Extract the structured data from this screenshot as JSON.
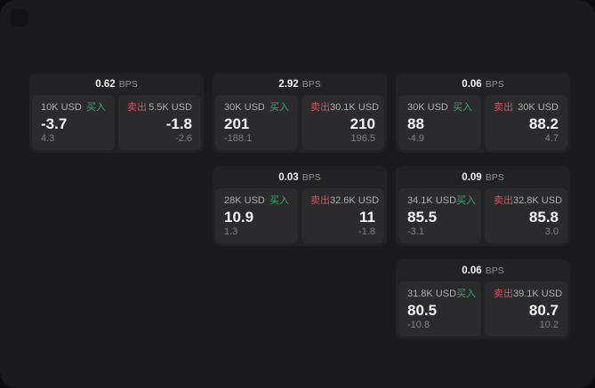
{
  "app": {
    "labels": {
      "buy": "买入",
      "sell": "卖出",
      "bps_unit": "BPS"
    },
    "colors": {
      "bg_outer": "#0c0c0e",
      "bg_container": "#1b1b1e",
      "card_bg": "#222225",
      "panel_bg": "#2b2b2e",
      "buy_green": "#3fa56b",
      "sell_red": "#d8505f",
      "text_primary": "#f5f5f7",
      "text_secondary": "#8f8f96",
      "text_amount": "#aeaeb4",
      "text_muted": "#818187"
    }
  },
  "cards": [
    {
      "bps": "0.62",
      "col": 1,
      "row": 1,
      "buy": {
        "amount": "10K USD",
        "value": "-3.7",
        "sub": "4.3"
      },
      "sell": {
        "amount": "5.5K USD",
        "value": "-1.8",
        "sub": "-2.6"
      }
    },
    {
      "bps": "2.92",
      "col": 2,
      "row": 1,
      "buy": {
        "amount": "30K USD",
        "value": "201",
        "sub": "-188.1"
      },
      "sell": {
        "amount": "30.1K USD",
        "value": "210",
        "sub": "196.5"
      }
    },
    {
      "bps": "0.06",
      "col": 3,
      "row": 1,
      "buy": {
        "amount": "30K USD",
        "value": "88",
        "sub": "-4.9"
      },
      "sell": {
        "amount": "30K USD",
        "value": "88.2",
        "sub": "4.7"
      }
    },
    {
      "bps": "0.03",
      "col": 2,
      "row": 2,
      "buy": {
        "amount": "28K USD",
        "value": "10.9",
        "sub": "1.3"
      },
      "sell": {
        "amount": "32.6K USD",
        "value": "11",
        "sub": "-1.8"
      }
    },
    {
      "bps": "0.09",
      "col": 3,
      "row": 2,
      "buy": {
        "amount": "34.1K USD",
        "value": "85.5",
        "sub": "-3.1"
      },
      "sell": {
        "amount": "32.8K USD",
        "value": "85.8",
        "sub": "3.0"
      }
    },
    {
      "bps": "0.06",
      "col": 3,
      "row": 3,
      "buy": {
        "amount": "31.8K USD",
        "value": "80.5",
        "sub": "-10.8"
      },
      "sell": {
        "amount": "39.1K USD",
        "value": "80.7",
        "sub": "10.2"
      }
    }
  ]
}
